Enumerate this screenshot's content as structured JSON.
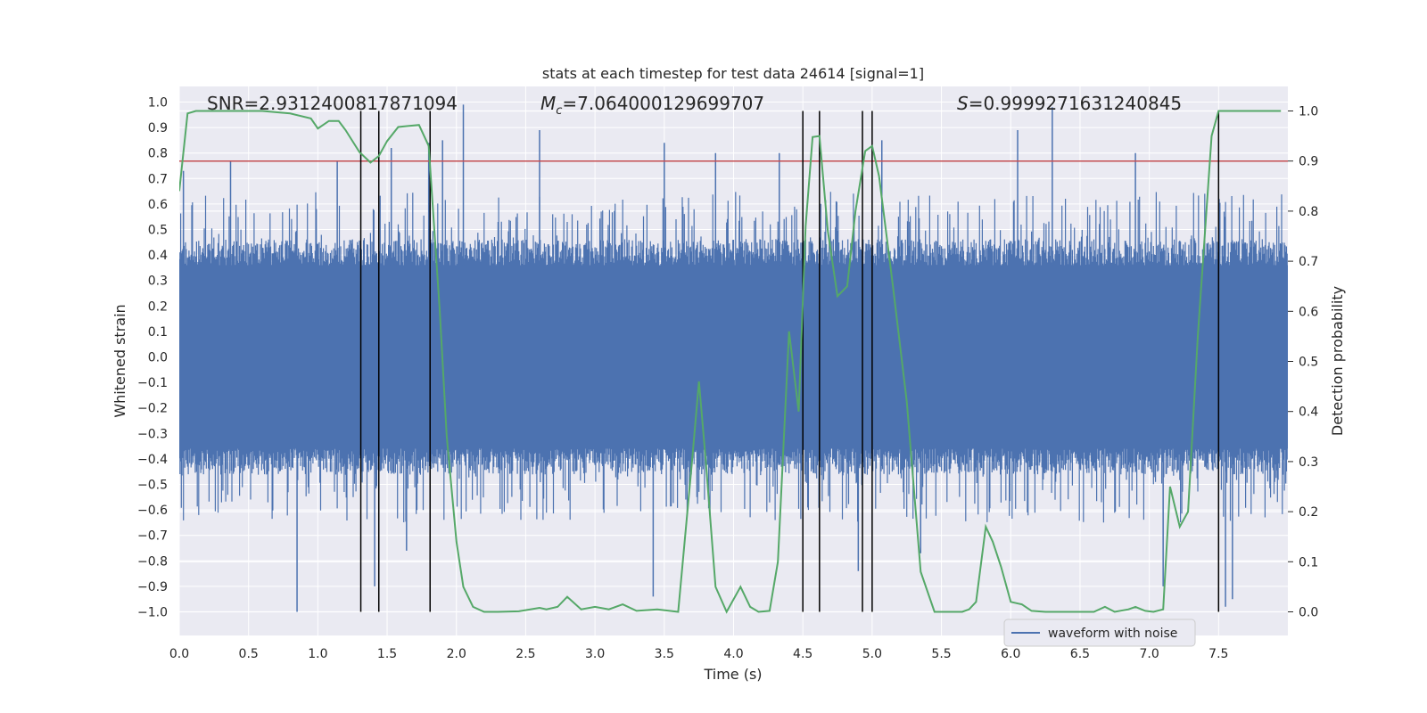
{
  "chart_data": {
    "type": "line",
    "title": "stats at each timestep for test data 24614 [signal=1]",
    "xlabel": "Time (s)",
    "ylabel_left": "Whitened strain",
    "ylabel_right": "Detection probability",
    "xlim": [
      0.0,
      8.0
    ],
    "ylim_left": [
      -1.1,
      1.05
    ],
    "ylim_right": [
      -0.05,
      1.03
    ],
    "x_ticks": [
      "0.0",
      "0.5",
      "1.0",
      "1.5",
      "2.0",
      "2.5",
      "3.0",
      "3.5",
      "4.0",
      "4.5",
      "5.0",
      "5.5",
      "6.0",
      "6.5",
      "7.0",
      "7.5"
    ],
    "x_tick_values": [
      0.0,
      0.5,
      1.0,
      1.5,
      2.0,
      2.5,
      3.0,
      3.5,
      4.0,
      4.5,
      5.0,
      5.5,
      6.0,
      6.5,
      7.0,
      7.5
    ],
    "y_left_ticks": [
      "1.0",
      "0.9",
      "0.8",
      "0.7",
      "0.6",
      "0.5",
      "0.4",
      "0.3",
      "0.2",
      "0.1",
      "0.0",
      "−0.1",
      "−0.2",
      "−0.3",
      "−0.4",
      "−0.5",
      "−0.6",
      "−0.7",
      "−0.8",
      "−0.9",
      "−1.0"
    ],
    "y_left_tick_values": [
      1.0,
      0.9,
      0.8,
      0.7,
      0.6,
      0.5,
      0.4,
      0.3,
      0.2,
      0.1,
      0.0,
      -0.1,
      -0.2,
      -0.3,
      -0.4,
      -0.5,
      -0.6,
      -0.7,
      -0.8,
      -0.9,
      -1.0
    ],
    "y_right_ticks": [
      "1.0",
      "0.9",
      "0.8",
      "0.7",
      "0.6",
      "0.5",
      "0.4",
      "0.3",
      "0.2",
      "0.1",
      "0.0"
    ],
    "y_right_tick_values": [
      1.0,
      0.9,
      0.8,
      0.7,
      0.6,
      0.5,
      0.4,
      0.3,
      0.2,
      0.1,
      0.0
    ],
    "annotations": {
      "snr": "SNR=2.9312400817871094",
      "mc_symbol": "M",
      "mc_sub": "c",
      "mc_value": "=7.064000129699707",
      "s_symbol": "S",
      "s_value": "=0.9999271631240845"
    },
    "threshold": {
      "axis": "right",
      "value": 0.9,
      "color": "#c44e52"
    },
    "vertical_lines_x": [
      1.31,
      1.44,
      1.81,
      4.5,
      4.62,
      4.93,
      5.0,
      7.5
    ],
    "waveform": {
      "name": "waveform with noise",
      "color": "#4c72b0",
      "axis": "left",
      "core_amplitude": 0.42,
      "peaks": [
        {
          "x": 0.03,
          "y": 0.73
        },
        {
          "x": 0.37,
          "y": 0.77
        },
        {
          "x": 0.85,
          "y": -1.0
        },
        {
          "x": 1.14,
          "y": 0.77
        },
        {
          "x": 1.41,
          "y": -0.9
        },
        {
          "x": 1.53,
          "y": 0.82
        },
        {
          "x": 1.64,
          "y": -0.76
        },
        {
          "x": 1.8,
          "y": 0.84
        },
        {
          "x": 1.9,
          "y": 0.85
        },
        {
          "x": 2.05,
          "y": 0.99
        },
        {
          "x": 2.6,
          "y": 0.89
        },
        {
          "x": 3.42,
          "y": -0.94
        },
        {
          "x": 3.5,
          "y": 0.84
        },
        {
          "x": 3.87,
          "y": 0.8
        },
        {
          "x": 4.33,
          "y": 0.8
        },
        {
          "x": 4.9,
          "y": -0.84
        },
        {
          "x": 5.07,
          "y": 0.85
        },
        {
          "x": 5.35,
          "y": -0.77
        },
        {
          "x": 6.05,
          "y": 0.89
        },
        {
          "x": 6.3,
          "y": 0.98
        },
        {
          "x": 6.9,
          "y": 0.8
        },
        {
          "x": 7.1,
          "y": -0.9
        },
        {
          "x": 7.55,
          "y": -0.98
        },
        {
          "x": 7.6,
          "y": -0.95
        }
      ]
    },
    "probability": {
      "name": "detection probability",
      "color": "#55a868",
      "axis": "right",
      "x": [
        0.0,
        0.06,
        0.12,
        0.2,
        0.4,
        0.6,
        0.8,
        0.95,
        1.0,
        1.08,
        1.15,
        1.2,
        1.3,
        1.38,
        1.44,
        1.5,
        1.58,
        1.65,
        1.73,
        1.8,
        1.88,
        1.93,
        2.0,
        2.05,
        2.12,
        2.2,
        2.3,
        2.45,
        2.6,
        2.65,
        2.73,
        2.8,
        2.9,
        3.0,
        3.1,
        3.2,
        3.3,
        3.45,
        3.6,
        3.7,
        3.75,
        3.8,
        3.87,
        3.95,
        4.05,
        4.12,
        4.18,
        4.26,
        4.32,
        4.4,
        4.47,
        4.52,
        4.57,
        4.62,
        4.68,
        4.75,
        4.82,
        4.88,
        4.95,
        5.0,
        5.05,
        5.15,
        5.25,
        5.35,
        5.45,
        5.55,
        5.65,
        5.7,
        5.75,
        5.82,
        5.87,
        5.93,
        6.0,
        6.08,
        6.15,
        6.25,
        6.4,
        6.6,
        6.68,
        6.75,
        6.85,
        6.9,
        6.97,
        7.03,
        7.1,
        7.15,
        7.22,
        7.28,
        7.35,
        7.45,
        7.5,
        7.55,
        7.62,
        7.7,
        7.8,
        7.95
      ],
      "y": [
        0.84,
        0.995,
        1.0,
        1.0,
        1.0,
        1.0,
        0.995,
        0.985,
        0.965,
        0.98,
        0.98,
        0.962,
        0.918,
        0.897,
        0.91,
        0.94,
        0.968,
        0.97,
        0.972,
        0.93,
        0.6,
        0.35,
        0.14,
        0.05,
        0.01,
        0.0,
        0.0,
        0.001,
        0.008,
        0.005,
        0.01,
        0.03,
        0.005,
        0.01,
        0.005,
        0.015,
        0.002,
        0.005,
        0.0,
        0.3,
        0.46,
        0.3,
        0.05,
        0.0,
        0.05,
        0.01,
        0.0,
        0.002,
        0.1,
        0.56,
        0.4,
        0.77,
        0.948,
        0.95,
        0.76,
        0.63,
        0.65,
        0.8,
        0.92,
        0.93,
        0.87,
        0.65,
        0.42,
        0.08,
        0.0,
        0.0,
        0.0,
        0.005,
        0.02,
        0.17,
        0.14,
        0.09,
        0.02,
        0.015,
        0.002,
        0.0,
        0.0,
        0.0,
        0.01,
        0.0,
        0.005,
        0.01,
        0.002,
        0.0,
        0.005,
        0.25,
        0.17,
        0.2,
        0.55,
        0.95,
        1.0,
        1.0,
        1.0,
        1.0,
        1.0,
        1.0
      ]
    },
    "legend": {
      "label": "waveform with noise",
      "placement": "lower-right"
    }
  }
}
